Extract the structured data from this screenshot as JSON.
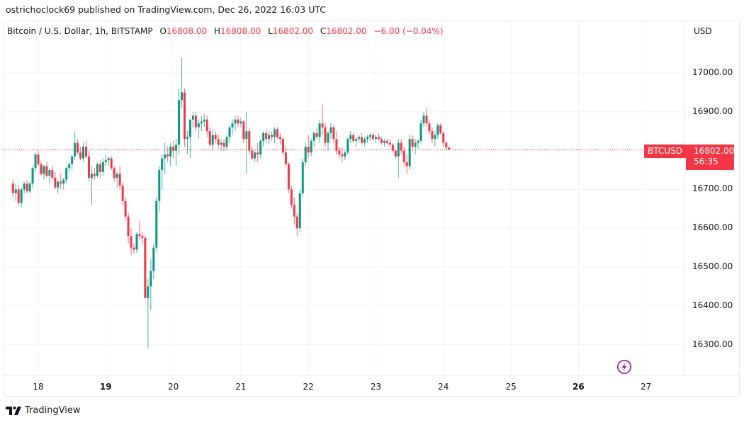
{
  "header": {
    "published_line": "ostrichoclock69 published on TradingView.com, Dec 26, 2022 16:03 UTC"
  },
  "legend": {
    "symbol_description": "Bitcoin / U.S. Dollar, 1h, BITSTAMP",
    "open_label": "O",
    "open": "16808.00",
    "high_label": "H",
    "high": "16808.00",
    "low_label": "L",
    "low": "16802.00",
    "close_label": "C",
    "close": "16802.00",
    "change": "−6.00 (−0.04%)"
  },
  "price_axis": {
    "currency": "USD",
    "ticks": [
      "17000.00",
      "16900.00",
      "16800.00",
      "16700.00",
      "16600.00",
      "16500.00",
      "16400.00",
      "16300.00"
    ]
  },
  "last_price": {
    "symbol": "BTCUSD",
    "price": "16802.00",
    "countdown": "56:35"
  },
  "time_axis": {
    "ticks": [
      {
        "label": "18",
        "bold": false
      },
      {
        "label": "19",
        "bold": true
      },
      {
        "label": "20",
        "bold": false
      },
      {
        "label": "21",
        "bold": false
      },
      {
        "label": "22",
        "bold": false
      },
      {
        "label": "23",
        "bold": false
      },
      {
        "label": "24",
        "bold": false
      },
      {
        "label": "25",
        "bold": false
      },
      {
        "label": "26",
        "bold": true
      },
      {
        "label": "27",
        "bold": false
      }
    ]
  },
  "footer": {
    "brand": "TradingView"
  },
  "colors": {
    "up": "#089981",
    "down": "#f23645",
    "grid": "#f0f3fa",
    "text": "#131722",
    "bolt": "#9c27b0"
  },
  "chart_data": {
    "type": "candlestick",
    "title": "Bitcoin / U.S. Dollar, 1h, BITSTAMP",
    "symbol": "BTCUSD",
    "interval": "1h",
    "xlabel": "",
    "ylabel": "USD",
    "ylim": [
      16200,
      17080
    ],
    "x_ticks": [
      "18",
      "19",
      "20",
      "21",
      "22",
      "23",
      "24",
      "25",
      "26",
      "27"
    ],
    "y_ticks": [
      16300,
      16400,
      16500,
      16600,
      16700,
      16800,
      16900,
      17000
    ],
    "grid": true,
    "last": {
      "open": 16808,
      "high": 16808,
      "low": 16802,
      "close": 16802,
      "change": -6.0,
      "change_pct": -0.04
    },
    "start_day": 17.625,
    "candles": [
      [
        16715,
        16725,
        16680,
        16690
      ],
      [
        16690,
        16715,
        16670,
        16700
      ],
      [
        16700,
        16710,
        16660,
        16665
      ],
      [
        16665,
        16705,
        16655,
        16700
      ],
      [
        16700,
        16720,
        16690,
        16715
      ],
      [
        16715,
        16725,
        16690,
        16695
      ],
      [
        16695,
        16720,
        16690,
        16715
      ],
      [
        16715,
        16760,
        16705,
        16755
      ],
      [
        16755,
        16795,
        16745,
        16790
      ],
      [
        16790,
        16800,
        16760,
        16765
      ],
      [
        16765,
        16770,
        16735,
        16740
      ],
      [
        16740,
        16765,
        16725,
        16760
      ],
      [
        16760,
        16770,
        16730,
        16735
      ],
      [
        16735,
        16755,
        16715,
        16750
      ],
      [
        16750,
        16760,
        16725,
        16730
      ],
      [
        16730,
        16745,
        16700,
        16705
      ],
      [
        16705,
        16725,
        16690,
        16720
      ],
      [
        16720,
        16740,
        16700,
        16715
      ],
      [
        16715,
        16730,
        16700,
        16725
      ],
      [
        16725,
        16760,
        16715,
        16755
      ],
      [
        16755,
        16770,
        16745,
        16765
      ],
      [
        16765,
        16790,
        16750,
        16785
      ],
      [
        16785,
        16850,
        16775,
        16820
      ],
      [
        16820,
        16830,
        16790,
        16795
      ],
      [
        16795,
        16810,
        16775,
        16780
      ],
      [
        16780,
        16820,
        16770,
        16810
      ],
      [
        16810,
        16825,
        16780,
        16785
      ],
      [
        16785,
        16800,
        16720,
        16730
      ],
      [
        16730,
        16760,
        16660,
        16740
      ],
      [
        16740,
        16755,
        16725,
        16735
      ],
      [
        16735,
        16770,
        16730,
        16765
      ],
      [
        16765,
        16775,
        16730,
        16745
      ],
      [
        16745,
        16780,
        16735,
        16770
      ],
      [
        16770,
        16790,
        16760,
        16775
      ],
      [
        16775,
        16785,
        16760,
        16780
      ],
      [
        16780,
        16785,
        16750,
        16755
      ],
      [
        16755,
        16760,
        16720,
        16730
      ],
      [
        16730,
        16745,
        16705,
        16740
      ],
      [
        16740,
        16760,
        16700,
        16710
      ],
      [
        16710,
        16720,
        16660,
        16670
      ],
      [
        16670,
        16680,
        16620,
        16630
      ],
      [
        16630,
        16640,
        16560,
        16580
      ],
      [
        16580,
        16600,
        16530,
        16550
      ],
      [
        16550,
        16560,
        16535,
        16545
      ],
      [
        16545,
        16590,
        16535,
        16585
      ],
      [
        16585,
        16620,
        16570,
        16580
      ],
      [
        16580,
        16590,
        16560,
        16575
      ],
      [
        16575,
        16580,
        16420,
        16420
      ],
      [
        16420,
        16470,
        16290,
        16450
      ],
      [
        16450,
        16520,
        16390,
        16490
      ],
      [
        16490,
        16560,
        16470,
        16550
      ],
      [
        16550,
        16680,
        16540,
        16670
      ],
      [
        16670,
        16760,
        16640,
        16750
      ],
      [
        16750,
        16790,
        16700,
        16780
      ],
      [
        16780,
        16820,
        16740,
        16790
      ],
      [
        16790,
        16810,
        16770,
        16785
      ],
      [
        16785,
        16820,
        16760,
        16810
      ],
      [
        16810,
        16825,
        16780,
        16800
      ],
      [
        16800,
        16830,
        16760,
        16815
      ],
      [
        16815,
        16960,
        16790,
        16930
      ],
      [
        16930,
        17040,
        16910,
        16950
      ],
      [
        16950,
        16960,
        16810,
        16830
      ],
      [
        16830,
        16850,
        16790,
        16835
      ],
      [
        16835,
        16870,
        16780,
        16880
      ],
      [
        16880,
        16900,
        16860,
        16890
      ],
      [
        16890,
        16900,
        16850,
        16860
      ],
      [
        16860,
        16880,
        16830,
        16870
      ],
      [
        16870,
        16890,
        16850,
        16875
      ],
      [
        16875,
        16895,
        16860,
        16880
      ],
      [
        16880,
        16890,
        16835,
        16850
      ],
      [
        16850,
        16860,
        16810,
        16815
      ],
      [
        16815,
        16855,
        16800,
        16840
      ],
      [
        16840,
        16850,
        16820,
        16830
      ],
      [
        16830,
        16840,
        16805,
        16815
      ],
      [
        16815,
        16830,
        16800,
        16820
      ],
      [
        16820,
        16830,
        16800,
        16810
      ],
      [
        16810,
        16840,
        16800,
        16835
      ],
      [
        16835,
        16865,
        16820,
        16860
      ],
      [
        16860,
        16880,
        16840,
        16870
      ],
      [
        16870,
        16890,
        16850,
        16880
      ],
      [
        16880,
        16890,
        16860,
        16870
      ],
      [
        16870,
        16885,
        16860,
        16875
      ],
      [
        16875,
        16880,
        16820,
        16830
      ],
      [
        16830,
        16900,
        16740,
        16850
      ],
      [
        16850,
        16860,
        16790,
        16800
      ],
      [
        16800,
        16810,
        16775,
        16780
      ],
      [
        16780,
        16800,
        16770,
        16795
      ],
      [
        16795,
        16820,
        16770,
        16790
      ],
      [
        16790,
        16830,
        16780,
        16825
      ],
      [
        16825,
        16850,
        16810,
        16845
      ],
      [
        16845,
        16855,
        16820,
        16830
      ],
      [
        16830,
        16850,
        16815,
        16840
      ],
      [
        16840,
        16850,
        16825,
        16835
      ],
      [
        16835,
        16860,
        16820,
        16855
      ],
      [
        16855,
        16860,
        16830,
        16835
      ],
      [
        16835,
        16845,
        16815,
        16830
      ],
      [
        16830,
        16835,
        16790,
        16795
      ],
      [
        16795,
        16810,
        16760,
        16765
      ],
      [
        16765,
        16770,
        16690,
        16700
      ],
      [
        16700,
        16710,
        16650,
        16660
      ],
      [
        16660,
        16680,
        16610,
        16630
      ],
      [
        16630,
        16640,
        16580,
        16600
      ],
      [
        16600,
        16700,
        16590,
        16690
      ],
      [
        16690,
        16780,
        16680,
        16770
      ],
      [
        16770,
        16820,
        16760,
        16810
      ],
      [
        16810,
        16840,
        16780,
        16795
      ],
      [
        16795,
        16830,
        16785,
        16825
      ],
      [
        16825,
        16850,
        16810,
        16845
      ],
      [
        16845,
        16860,
        16830,
        16835
      ],
      [
        16835,
        16880,
        16820,
        16870
      ],
      [
        16870,
        16920,
        16840,
        16860
      ],
      [
        16860,
        16870,
        16810,
        16820
      ],
      [
        16820,
        16850,
        16800,
        16845
      ],
      [
        16845,
        16870,
        16830,
        16860
      ],
      [
        16860,
        16865,
        16820,
        16830
      ],
      [
        16830,
        16850,
        16790,
        16800
      ],
      [
        16800,
        16810,
        16780,
        16790
      ],
      [
        16790,
        16810,
        16770,
        16785
      ],
      [
        16785,
        16800,
        16775,
        16795
      ],
      [
        16795,
        16835,
        16790,
        16830
      ],
      [
        16830,
        16850,
        16820,
        16840
      ],
      [
        16840,
        16845,
        16820,
        16825
      ],
      [
        16825,
        16835,
        16810,
        16830
      ],
      [
        16830,
        16840,
        16820,
        16835
      ],
      [
        16835,
        16845,
        16815,
        16820
      ],
      [
        16820,
        16835,
        16810,
        16830
      ],
      [
        16830,
        16840,
        16820,
        16835
      ],
      [
        16835,
        16845,
        16825,
        16840
      ],
      [
        16840,
        16845,
        16825,
        16830
      ],
      [
        16830,
        16840,
        16820,
        16835
      ],
      [
        16835,
        16845,
        16825,
        16830
      ],
      [
        16830,
        16835,
        16815,
        16820
      ],
      [
        16820,
        16830,
        16810,
        16825
      ],
      [
        16825,
        16830,
        16815,
        16820
      ],
      [
        16820,
        16830,
        16810,
        16815
      ],
      [
        16815,
        16820,
        16795,
        16800
      ],
      [
        16800,
        16805,
        16780,
        16785
      ],
      [
        16785,
        16830,
        16730,
        16820
      ],
      [
        16820,
        16830,
        16790,
        16800
      ],
      [
        16800,
        16810,
        16760,
        16770
      ],
      [
        16770,
        16790,
        16740,
        16760
      ],
      [
        16760,
        16840,
        16750,
        16830
      ],
      [
        16830,
        16840,
        16800,
        16810
      ],
      [
        16810,
        16830,
        16790,
        16820
      ],
      [
        16820,
        16830,
        16805,
        16825
      ],
      [
        16825,
        16880,
        16820,
        16870
      ],
      [
        16870,
        16900,
        16860,
        16890
      ],
      [
        16890,
        16910,
        16860,
        16870
      ],
      [
        16870,
        16880,
        16840,
        16850
      ],
      [
        16850,
        16860,
        16820,
        16830
      ],
      [
        16830,
        16850,
        16810,
        16840
      ],
      [
        16840,
        16870,
        16830,
        16865
      ],
      [
        16865,
        16870,
        16840,
        16845
      ],
      [
        16845,
        16850,
        16810,
        16820
      ],
      [
        16820,
        16825,
        16800,
        16808
      ],
      [
        16808,
        16808,
        16802,
        16802
      ]
    ]
  }
}
